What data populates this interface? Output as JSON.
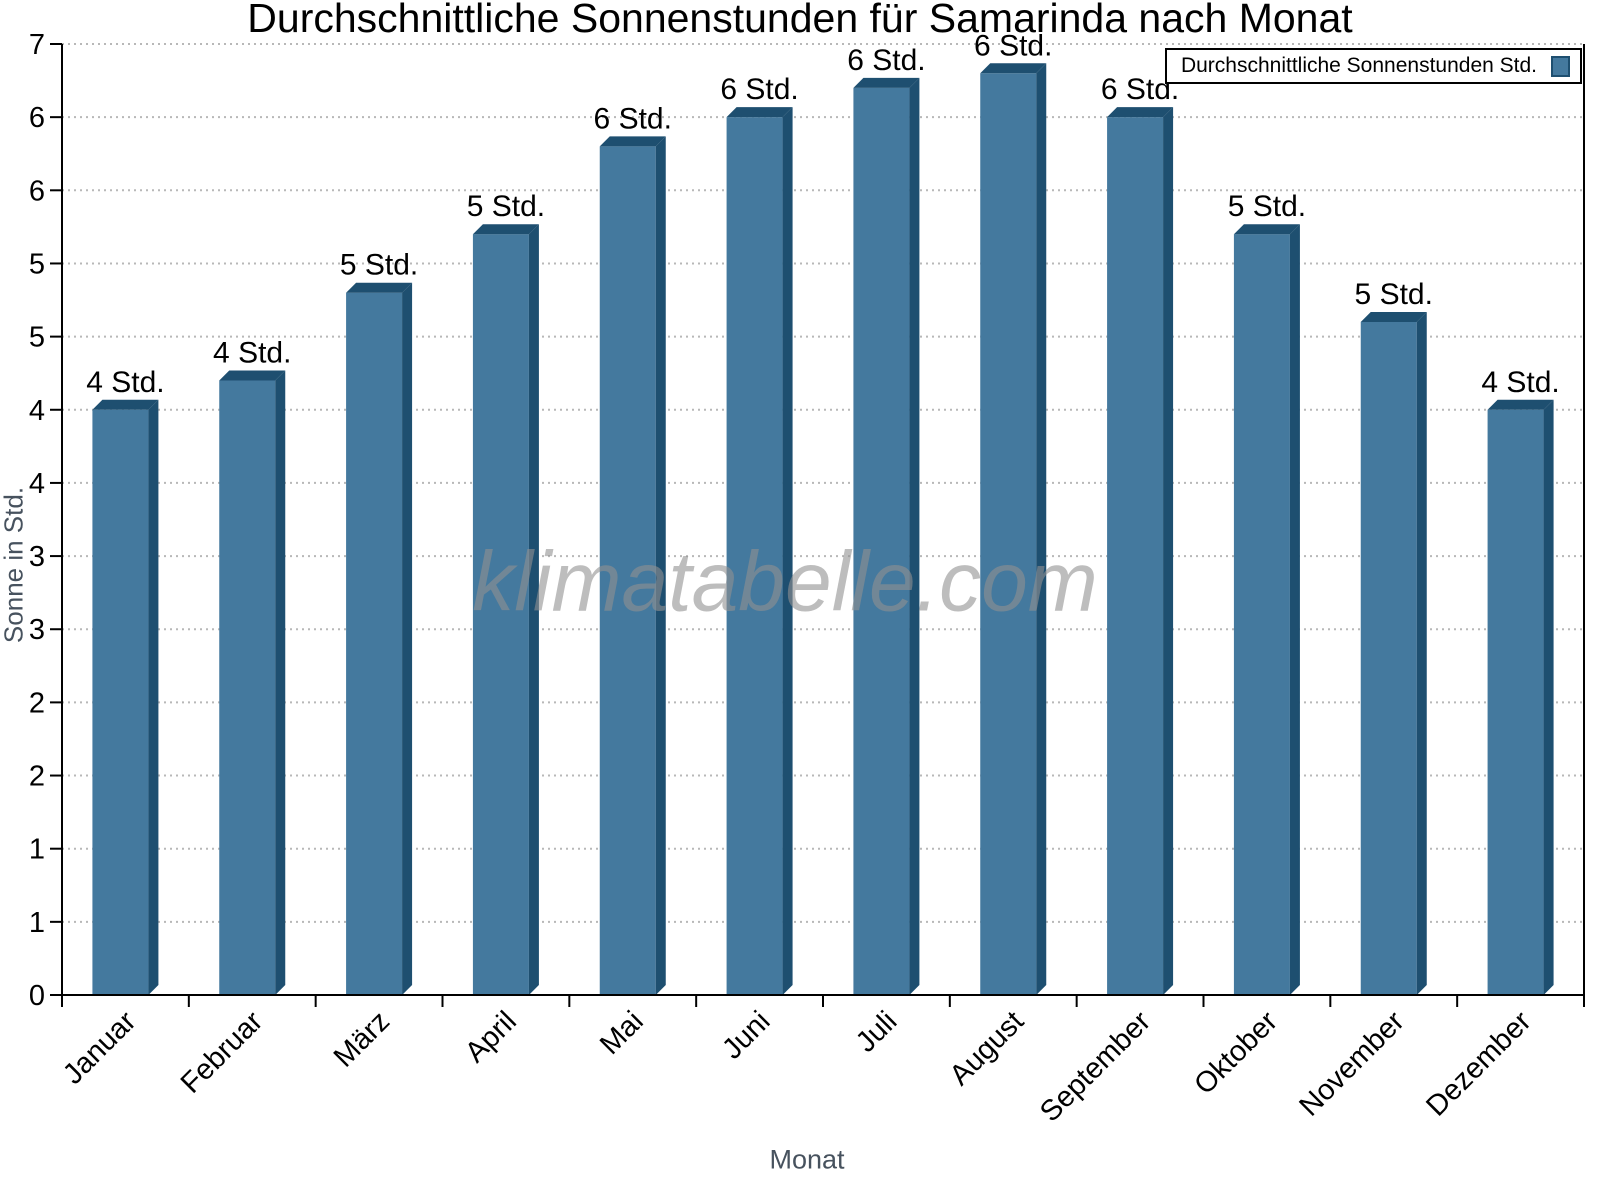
{
  "chart_data": {
    "type": "bar",
    "title": "Durchschnittliche Sonnenstunden für Samarinda nach Monat",
    "xlabel": "Monat",
    "ylabel": "Sonne in Std.",
    "watermark": "klimatabelle.com",
    "legend": {
      "label": "Durchschnittliche Sonnenstunden Std.",
      "position": "top-right"
    },
    "categories": [
      "Januar",
      "Februar",
      "März",
      "April",
      "Mai",
      "Juni",
      "Juli",
      "August",
      "September",
      "Oktober",
      "November",
      "Dezember"
    ],
    "values": [
      4.0,
      4.2,
      4.8,
      5.2,
      5.8,
      6.0,
      6.2,
      6.3,
      6.0,
      5.2,
      4.6,
      4.0
    ],
    "bar_labels": [
      "4 Std.",
      "4 Std.",
      "5 Std.",
      "5 Std.",
      "6 Std.",
      "6 Std.",
      "6 Std.",
      "6 Std.",
      "6 Std.",
      "5 Std.",
      "5 Std.",
      "4 Std."
    ],
    "unit": "Std.",
    "ylim": [
      0,
      6.5
    ],
    "y_tick_step": 0.5,
    "y_tick_values": [
      0,
      0.5,
      1,
      1.5,
      2,
      2.5,
      3,
      3.5,
      4,
      4.5,
      5,
      5.5,
      6,
      6.5
    ],
    "y_tick_labels": [
      "0",
      "1",
      "1",
      "2",
      "2",
      "3",
      "3",
      "4",
      "4",
      "5",
      "5",
      "6",
      "6",
      "7"
    ],
    "grid": "horizontal-dotted",
    "x_tick_style": "category-boundaries",
    "colors": {
      "bar_face": "#44799E",
      "bar_edge": "#1E4F70",
      "grid": "#B8B8B8",
      "axis": "#000000",
      "axis_title": "#47525E",
      "tick_label": "#000000",
      "watermark": "#919191",
      "background": "#FFFFFF"
    }
  }
}
